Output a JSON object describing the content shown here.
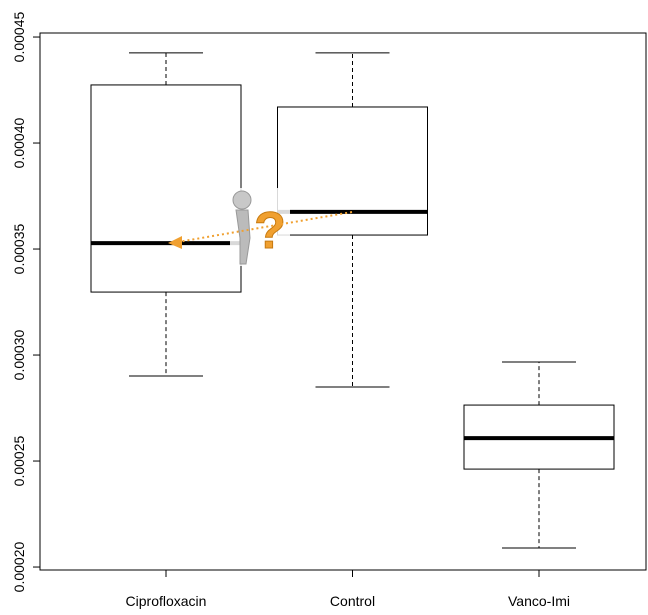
{
  "chart_data": {
    "type": "box",
    "categories": [
      "Ciprofloxacin",
      "Control",
      "Vanco-Imi"
    ],
    "min": [
      0.0002901,
      0.0002849,
      0.000209
    ],
    "q1": [
      0.0003297,
      0.0003566,
      0.0002462
    ],
    "median": [
      0.0003528,
      0.0003675,
      0.0002608
    ],
    "q3": [
      0.0004274,
      0.000417,
      0.0002764
    ],
    "max": [
      0.0004425,
      0.0004425,
      0.0002967
    ],
    "ylim": [
      0.0001986,
      0.0004519
    ],
    "yticks": [
      {
        "value": 0.0002,
        "label": "0.00020"
      },
      {
        "value": 0.00025,
        "label": "0.00025"
      },
      {
        "value": 0.0003,
        "label": "0.00030"
      },
      {
        "value": 0.00035,
        "label": "0.00035"
      },
      {
        "value": 0.0004,
        "label": "0.00040"
      },
      {
        "value": 0.00045,
        "label": "0.00045"
      }
    ]
  }
}
